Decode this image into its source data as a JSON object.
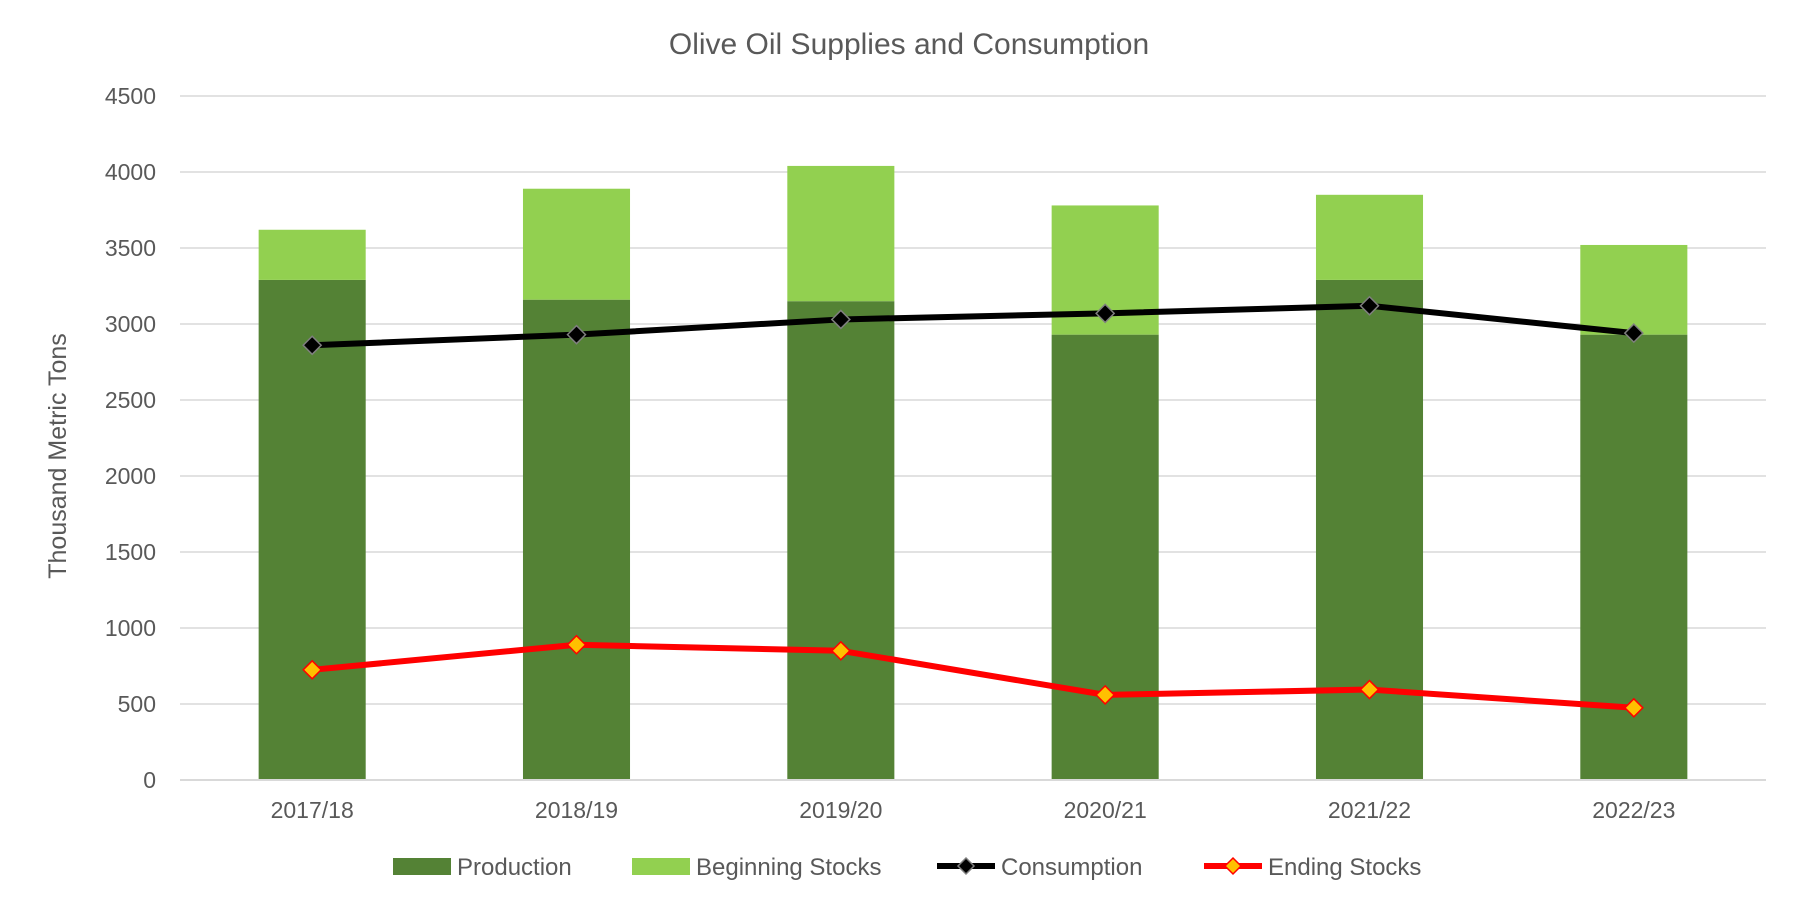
{
  "chart_data": {
    "type": "bar",
    "subtype": "stacked bar with line overlays",
    "title": "Olive Oil Supplies and Consumption",
    "xlabel": "",
    "ylabel": "Thousand Metric Tons",
    "ylim": [
      0,
      4500
    ],
    "yticks": [
      0,
      500,
      1000,
      1500,
      2000,
      2500,
      3000,
      3500,
      4000,
      4500
    ],
    "ytick_labels": [
      "0",
      "500",
      "1000",
      "1500",
      "2000",
      "2500",
      "3000",
      "3500",
      "4000",
      "4500"
    ],
    "grid": true,
    "legend_position": "bottom",
    "categories": [
      "2017/18",
      "2018/19",
      "2019/20",
      "2020/21",
      "2021/22",
      "2022/23"
    ],
    "series": [
      {
        "name": "Production",
        "type": "bar",
        "stacked": true,
        "color": "#548235",
        "values": [
          3290,
          3160,
          3150,
          2930,
          3290,
          2930
        ]
      },
      {
        "name": "Beginning Stocks",
        "type": "bar",
        "stacked": true,
        "color": "#92d050",
        "values": [
          330,
          730,
          890,
          850,
          560,
          590
        ]
      },
      {
        "name": "Consumption",
        "type": "line",
        "color": "#000000",
        "marker": "diamond",
        "marker_color": "#000000",
        "values": [
          2860,
          2930,
          3030,
          3070,
          3120,
          2940
        ]
      },
      {
        "name": "Ending Stocks",
        "type": "line",
        "color": "#ff0000",
        "marker": "diamond",
        "marker_color": "#ffc000",
        "values": [
          725,
          890,
          850,
          560,
          595,
          475
        ]
      }
    ]
  }
}
